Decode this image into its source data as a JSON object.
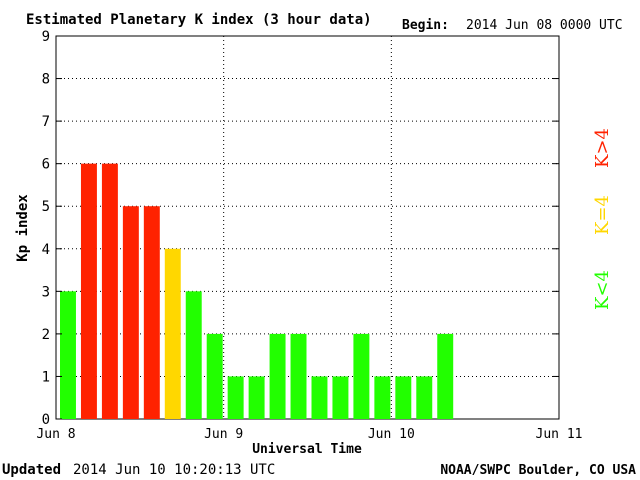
{
  "header": {
    "title": "Estimated Planetary K index (3 hour data)",
    "begin_label": "Begin:",
    "begin_value": "2014 Jun 08 0000 UTC"
  },
  "footer": {
    "updated_label": "Updated",
    "updated_value": "2014 Jun 10 10:20:13 UTC",
    "credit": "NOAA/SWPC Boulder, CO USA"
  },
  "legend": {
    "greater": "K>4",
    "equal": "K=4",
    "less": "K<4"
  },
  "colors": {
    "red": "#ff2200",
    "yellow": "#ffd700",
    "green": "#22ff00"
  },
  "chart_data": {
    "type": "bar",
    "ylabel": "Kp index",
    "xlabel": "Universal Time",
    "ylim": [
      0,
      9
    ],
    "y_ticks": [
      0,
      1,
      2,
      3,
      4,
      5,
      6,
      7,
      8,
      9
    ],
    "x_ticks": [
      "Jun 8",
      "Jun 9",
      "Jun 10",
      "Jun 11"
    ],
    "x_range_slots": 24,
    "grid": true,
    "values": [
      3,
      6,
      6,
      5,
      5,
      4,
      3,
      2,
      1,
      1,
      2,
      2,
      1,
      1,
      2,
      1,
      1,
      1,
      2
    ]
  }
}
